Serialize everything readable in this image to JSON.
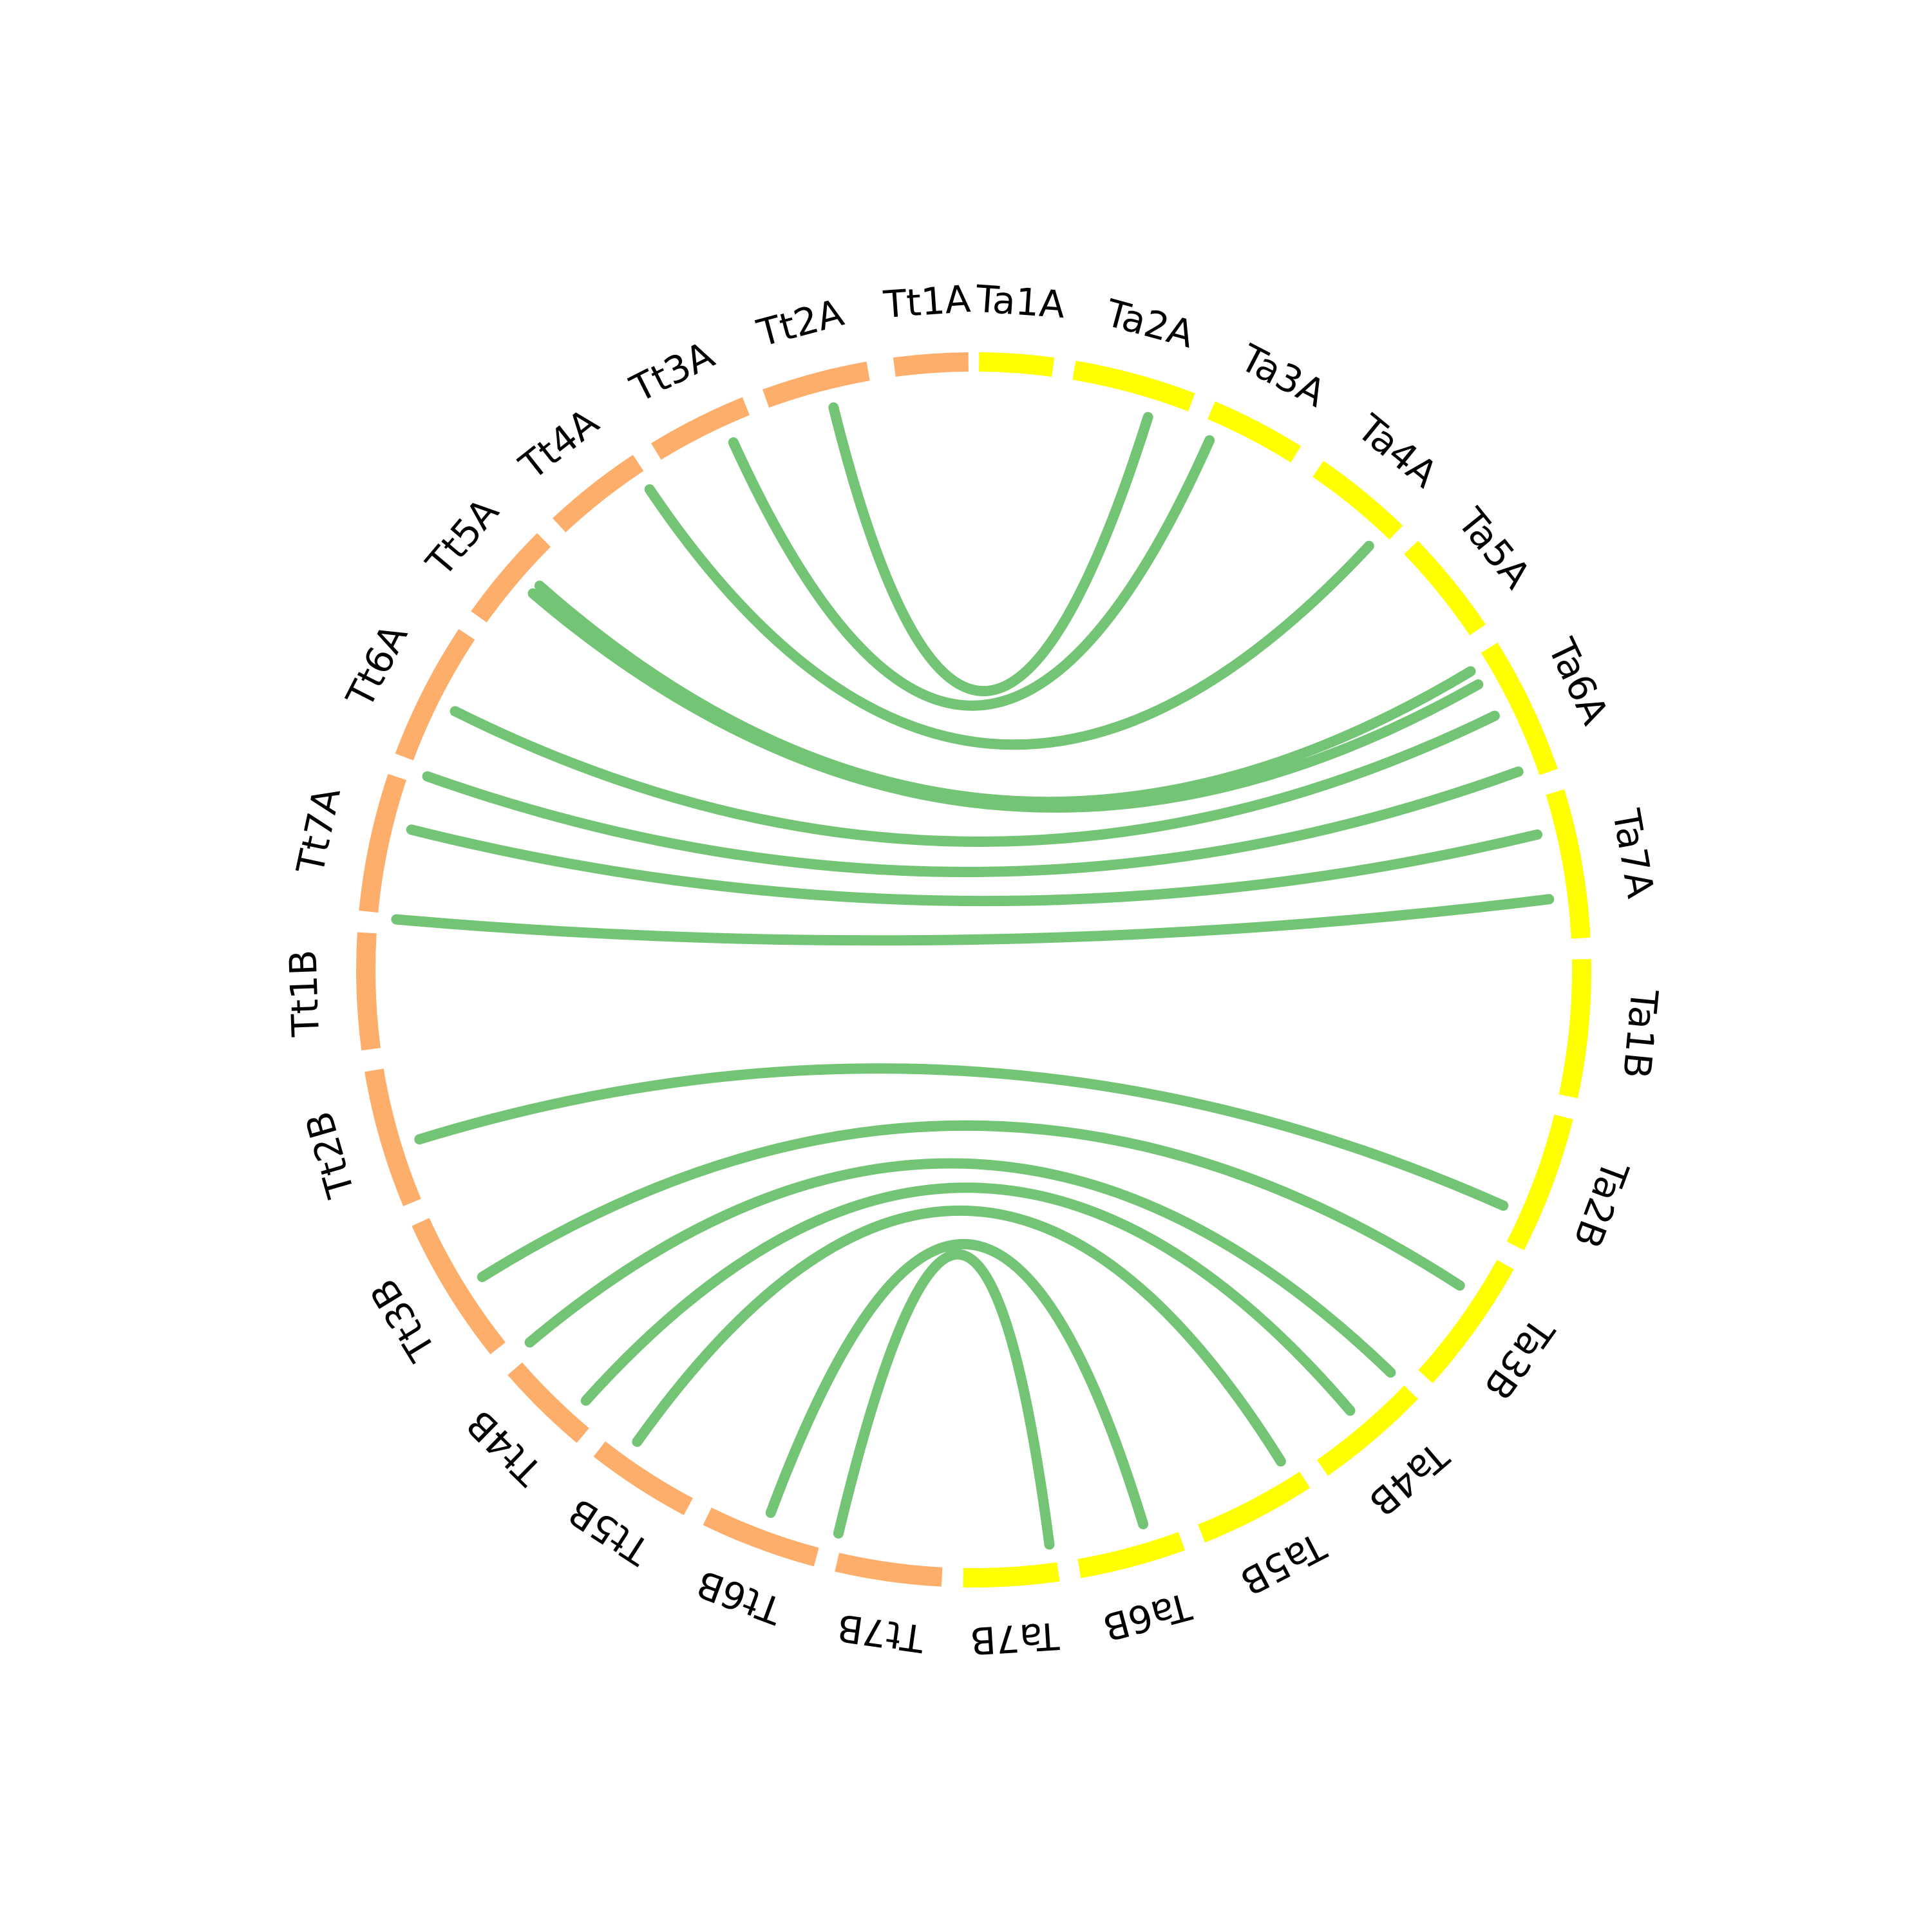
{
  "colors": {
    "tt": "#fdae6b",
    "ta": "#ffff00",
    "link": "#74c476",
    "label": "#000000"
  },
  "segments": [
    {
      "name": "Tt1A",
      "group": "tt",
      "start_deg": 352.5,
      "end_deg": 359.5
    },
    {
      "name": "Ta1A",
      "group": "ta",
      "start_deg": 0.5,
      "end_deg": 7.5
    },
    {
      "name": "Ta2A",
      "group": "ta",
      "start_deg": 9.5,
      "end_deg": 21.0
    },
    {
      "name": "Ta3A",
      "group": "ta",
      "start_deg": 23.0,
      "end_deg": 32.0
    },
    {
      "name": "Ta4A",
      "group": "ta",
      "start_deg": 34.5,
      "end_deg": 44.0
    },
    {
      "name": "Ta5A",
      "group": "ta",
      "start_deg": 46.0,
      "end_deg": 56.0
    },
    {
      "name": "Ta6A",
      "group": "ta",
      "start_deg": 58.0,
      "end_deg": 71.0
    },
    {
      "name": "Ta7A",
      "group": "ta",
      "start_deg": 73.0,
      "end_deg": 87.0
    },
    {
      "name": "Ta1B",
      "group": "ta",
      "start_deg": 89.0,
      "end_deg": 102.0
    },
    {
      "name": "Ta2B",
      "group": "ta",
      "start_deg": 104.0,
      "end_deg": 117.0
    },
    {
      "name": "Ta3B",
      "group": "ta",
      "start_deg": 119.0,
      "end_deg": 132.0
    },
    {
      "name": "Ta4B",
      "group": "ta",
      "start_deg": 134.0,
      "end_deg": 145.0
    },
    {
      "name": "Ta5B",
      "group": "ta",
      "start_deg": 147.0,
      "end_deg": 158.0
    },
    {
      "name": "Ta6B",
      "group": "ta",
      "start_deg": 160.0,
      "end_deg": 170.0
    },
    {
      "name": "Ta7B",
      "group": "ta",
      "start_deg": 172.0,
      "end_deg": 181.0
    },
    {
      "name": "Tt7B",
      "group": "tt",
      "start_deg": 183.0,
      "end_deg": 193.0
    },
    {
      "name": "Tt6B",
      "group": "tt",
      "start_deg": 195.0,
      "end_deg": 206.0
    },
    {
      "name": "Tt5B",
      "group": "tt",
      "start_deg": 208.0,
      "end_deg": 218.0
    },
    {
      "name": "Tt4B",
      "group": "tt",
      "start_deg": 220.0,
      "end_deg": 229.0
    },
    {
      "name": "Tt3B",
      "group": "tt",
      "start_deg": 231.5,
      "end_deg": 245.5
    },
    {
      "name": "Tt2B",
      "group": "tt",
      "start_deg": 247.5,
      "end_deg": 260.5
    },
    {
      "name": "Tt1B",
      "group": "tt",
      "start_deg": 262.5,
      "end_deg": 273.5
    },
    {
      "name": "Tt7A",
      "group": "tt",
      "start_deg": 275.5,
      "end_deg": 288.5
    },
    {
      "name": "Tt6A",
      "group": "tt",
      "start_deg": 290.5,
      "end_deg": 303.5
    },
    {
      "name": "Tt5A",
      "group": "tt",
      "start_deg": 305.5,
      "end_deg": 315.0
    },
    {
      "name": "Tt4A",
      "group": "tt",
      "start_deg": 317.0,
      "end_deg": 326.5
    },
    {
      "name": "Tt3A",
      "group": "tt",
      "start_deg": 328.5,
      "end_deg": 338.0
    },
    {
      "name": "Tt2A",
      "group": "tt",
      "start_deg": 340.0,
      "end_deg": 350.0
    }
  ],
  "links": [
    {
      "from": "Tt2A",
      "to": "Ta2A",
      "from_deg": 346.0,
      "to_deg": 17.5
    },
    {
      "from": "Tt3A",
      "to": "Ta3A",
      "from_deg": 335.5,
      "to_deg": 24.0
    },
    {
      "from": "Tt4A",
      "to": "Ta4A",
      "from_deg": 326.0,
      "to_deg": 43.0
    },
    {
      "from": "Tt5A",
      "to": "Ta5A",
      "from_deg": 311.5,
      "to_deg": 59.0
    },
    {
      "from": "Tt5A",
      "to": "Ta5A",
      "from_deg": 310.5,
      "to_deg": 60.5
    },
    {
      "from": "Tt6A",
      "to": "Ta6A",
      "from_deg": 296.5,
      "to_deg": 64.0
    },
    {
      "from": "Tt6A",
      "to": "Ta6A",
      "from_deg": 289.5,
      "to_deg": 70.0
    },
    {
      "from": "Tt7A",
      "to": "Ta7A",
      "from_deg": 284.0,
      "to_deg": 76.5
    },
    {
      "from": "Tt7A",
      "to": "Ta7A",
      "from_deg": 275.0,
      "to_deg": 83.0
    },
    {
      "from": "Tt2B",
      "to": "Ta2B",
      "from_deg": 253.0,
      "to_deg": 114.0
    },
    {
      "from": "Tt3B",
      "to": "Ta3B",
      "from_deg": 238.0,
      "to_deg": 123.0
    },
    {
      "from": "Tt4B",
      "to": "Ta4B",
      "from_deg": 230.0,
      "to_deg": 134.0
    },
    {
      "from": "Tt4B",
      "to": "Ta4B",
      "from_deg": 222.0,
      "to_deg": 139.5
    },
    {
      "from": "Tt5B",
      "to": "Ta5B",
      "from_deg": 215.5,
      "to_deg": 148.0
    },
    {
      "from": "Tt6B",
      "to": "Ta6B",
      "from_deg": 200.5,
      "to_deg": 163.0
    },
    {
      "from": "Tt7B",
      "to": "Ta7B",
      "from_deg": 193.5,
      "to_deg": 172.5
    }
  ]
}
